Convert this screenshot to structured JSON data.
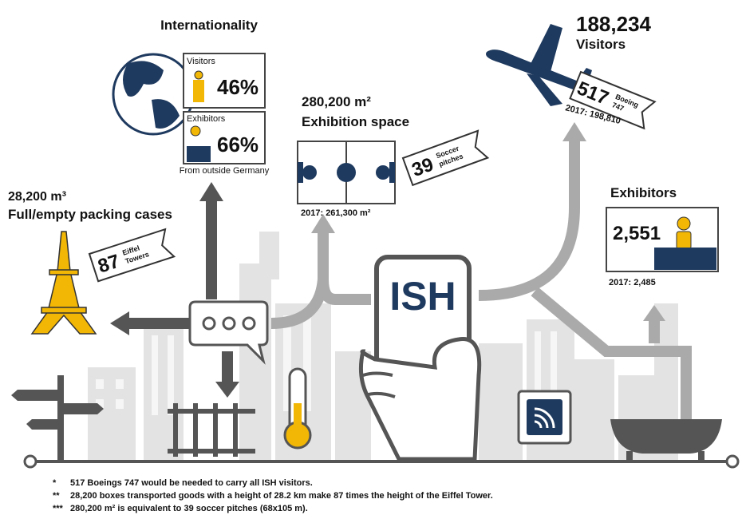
{
  "internationality": {
    "title": "Internationality",
    "visitors": {
      "label": "Visitors",
      "value": "46%"
    },
    "exhibitors": {
      "label": "Exhibitors",
      "value": "66%"
    },
    "note": "From outside Germany"
  },
  "packing_cases": {
    "amount": "28,200 m³",
    "label": "Full/empty packing cases",
    "tag_number": "87",
    "tag_text": [
      "Eiffel",
      "Towers"
    ]
  },
  "exhibition_space": {
    "amount": "280,200 m²",
    "label": "Exhibition space",
    "tag_number": "39",
    "tag_text": [
      "Soccer",
      "pitches"
    ],
    "previous": "2017: 261,300 m²"
  },
  "visitors": {
    "amount": "188,234",
    "label": "Visitors",
    "tag_number": "517",
    "tag_text": [
      "Boeing",
      "747"
    ],
    "previous": "2017: 198,810"
  },
  "exhibitors": {
    "label": "Exhibitors",
    "amount": "2,551",
    "previous": "2017: 2,485"
  },
  "phone_label": "ISH",
  "footnotes": [
    {
      "marker": "*",
      "text": "517 Boeings 747 would be needed to carry all ISH visitors."
    },
    {
      "marker": "**",
      "text": "28,200 boxes transported goods with a height of 28.2 km make 87 times the height of the Eiffel Tower."
    },
    {
      "marker": "***",
      "text": "280,200 m² is equivalent to 39 soccer pitches (68x105 m)."
    }
  ]
}
